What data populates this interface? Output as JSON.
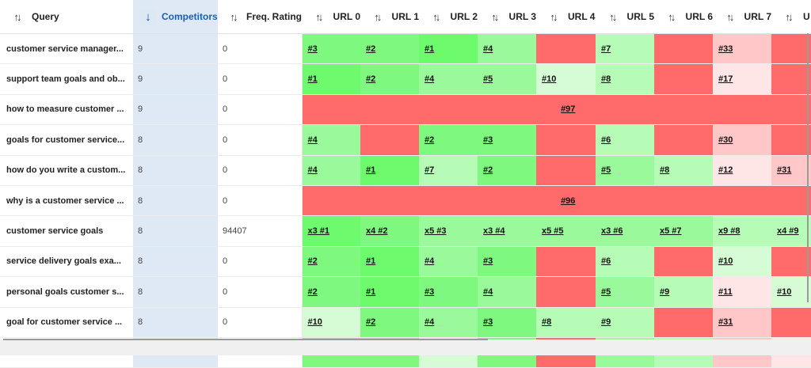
{
  "columns": {
    "query": "Query",
    "competitors": "Competitors",
    "freq_rating": "Freq. Rating",
    "urls": [
      "URL 0",
      "URL 1",
      "URL 2",
      "URL 3",
      "URL 4",
      "URL 5",
      "URL 6",
      "URL 7",
      "U"
    ]
  },
  "sort": {
    "column": "competitors",
    "direction": "desc"
  },
  "icons": {
    "sort_both": "sort-arrows-icon",
    "sort_desc": "arrow-down-icon"
  },
  "colors": {
    "red": "#ff6b6b",
    "green_strong": "#6dfb6d",
    "green": "#7ff87f",
    "green_mid": "#9af99a",
    "green_light": "#b6fbb6",
    "green_pale": "#d6fcd6",
    "pink": "#ffc7c7",
    "pink_pale": "#ffe6e6",
    "selected_column": "#dfe9f6",
    "accent": "#1a5fb4"
  },
  "rows": [
    {
      "query": "customer service manager...",
      "competitors": "9",
      "freq": "0",
      "cells": [
        {
          "t": "#3",
          "c": "green"
        },
        {
          "t": "#2",
          "c": "green"
        },
        {
          "t": "#1",
          "c": "green_strong"
        },
        {
          "t": "#4",
          "c": "green_mid"
        },
        {
          "t": "",
          "c": "red"
        },
        {
          "t": "#7",
          "c": "green_light"
        },
        {
          "t": "",
          "c": "red"
        },
        {
          "t": "#33",
          "c": "pink"
        },
        {
          "t": "",
          "c": "red"
        }
      ]
    },
    {
      "query": "support team goals and ob...",
      "competitors": "9",
      "freq": "0",
      "cells": [
        {
          "t": "#1",
          "c": "green_strong"
        },
        {
          "t": "#2",
          "c": "green"
        },
        {
          "t": "#4",
          "c": "green_mid"
        },
        {
          "t": "#5",
          "c": "green_mid"
        },
        {
          "t": "#10",
          "c": "green_pale"
        },
        {
          "t": "#8",
          "c": "green_light"
        },
        {
          "t": "",
          "c": "red"
        },
        {
          "t": "#17",
          "c": "pink_pale"
        },
        {
          "t": "",
          "c": "red"
        }
      ]
    },
    {
      "query": "how to measure customer ...",
      "competitors": "9",
      "freq": "0",
      "span": "#97"
    },
    {
      "query": "goals for customer service...",
      "competitors": "8",
      "freq": "0",
      "cells": [
        {
          "t": "#4",
          "c": "green_mid"
        },
        {
          "t": "",
          "c": "red"
        },
        {
          "t": "#2",
          "c": "green"
        },
        {
          "t": "#3",
          "c": "green"
        },
        {
          "t": "",
          "c": "red"
        },
        {
          "t": "#6",
          "c": "green_light"
        },
        {
          "t": "",
          "c": "red"
        },
        {
          "t": "#30",
          "c": "pink"
        },
        {
          "t": "",
          "c": "red"
        }
      ]
    },
    {
      "query": "how do you write a custom...",
      "competitors": "8",
      "freq": "0",
      "cells": [
        {
          "t": "#4",
          "c": "green_mid"
        },
        {
          "t": "#1",
          "c": "green_strong"
        },
        {
          "t": "#7",
          "c": "green_light"
        },
        {
          "t": "#2",
          "c": "green"
        },
        {
          "t": "",
          "c": "red"
        },
        {
          "t": "#5",
          "c": "green_mid"
        },
        {
          "t": "#8",
          "c": "green_light"
        },
        {
          "t": "#12",
          "c": "pink_pale"
        },
        {
          "t": "#31",
          "c": "pink"
        }
      ]
    },
    {
      "query": "why is a customer service ...",
      "competitors": "8",
      "freq": "0",
      "span": "#96"
    },
    {
      "query": "customer service goals",
      "competitors": "8",
      "freq": "94407",
      "cells": [
        {
          "t": "x3 #1",
          "c": "green_strong"
        },
        {
          "t": "x4 #2",
          "c": "green"
        },
        {
          "t": "x5 #3",
          "c": "green_mid"
        },
        {
          "t": "x3 #4",
          "c": "green_mid"
        },
        {
          "t": "x5 #5",
          "c": "green_mid"
        },
        {
          "t": "x3 #6",
          "c": "green_mid"
        },
        {
          "t": "x5 #7",
          "c": "green_mid"
        },
        {
          "t": "x9 #8",
          "c": "green_light"
        },
        {
          "t": "x4 #9",
          "c": "green_light"
        }
      ]
    },
    {
      "query": "service delivery goals exa...",
      "competitors": "8",
      "freq": "0",
      "cells": [
        {
          "t": "#2",
          "c": "green"
        },
        {
          "t": "#1",
          "c": "green_strong"
        },
        {
          "t": "#4",
          "c": "green_mid"
        },
        {
          "t": "#3",
          "c": "green"
        },
        {
          "t": "",
          "c": "red"
        },
        {
          "t": "#6",
          "c": "green_light"
        },
        {
          "t": "",
          "c": "red"
        },
        {
          "t": "#10",
          "c": "green_pale"
        },
        {
          "t": "",
          "c": "red"
        }
      ]
    },
    {
      "query": "personal goals customer s...",
      "competitors": "8",
      "freq": "0",
      "cells": [
        {
          "t": "#2",
          "c": "green"
        },
        {
          "t": "#1",
          "c": "green_strong"
        },
        {
          "t": "#3",
          "c": "green"
        },
        {
          "t": "#4",
          "c": "green_mid"
        },
        {
          "t": "",
          "c": "red"
        },
        {
          "t": "#5",
          "c": "green_mid"
        },
        {
          "t": "#9",
          "c": "green_light"
        },
        {
          "t": "#11",
          "c": "pink_pale"
        },
        {
          "t": "#10",
          "c": "green_pale"
        }
      ]
    },
    {
      "query": "goal for customer service ...",
      "competitors": "8",
      "freq": "0",
      "cells": [
        {
          "t": "#10",
          "c": "green_pale"
        },
        {
          "t": "#2",
          "c": "green"
        },
        {
          "t": "#4",
          "c": "green_mid"
        },
        {
          "t": "#3",
          "c": "green"
        },
        {
          "t": "#8",
          "c": "green_light"
        },
        {
          "t": "#9",
          "c": "green_light"
        },
        {
          "t": "",
          "c": "red"
        },
        {
          "t": "#31",
          "c": "pink"
        },
        {
          "t": "",
          "c": "red"
        }
      ]
    },
    {
      "query": "",
      "competitors": "",
      "freq": "",
      "cells": [
        {
          "t": "",
          "c": "green"
        },
        {
          "t": "",
          "c": "green"
        },
        {
          "t": "",
          "c": "green_pale"
        },
        {
          "t": "",
          "c": "green"
        },
        {
          "t": "",
          "c": "red"
        },
        {
          "t": "",
          "c": "green_mid"
        },
        {
          "t": "",
          "c": "green_light"
        },
        {
          "t": "",
          "c": "pink"
        },
        {
          "t": "",
          "c": "pink_pale"
        }
      ]
    }
  ]
}
